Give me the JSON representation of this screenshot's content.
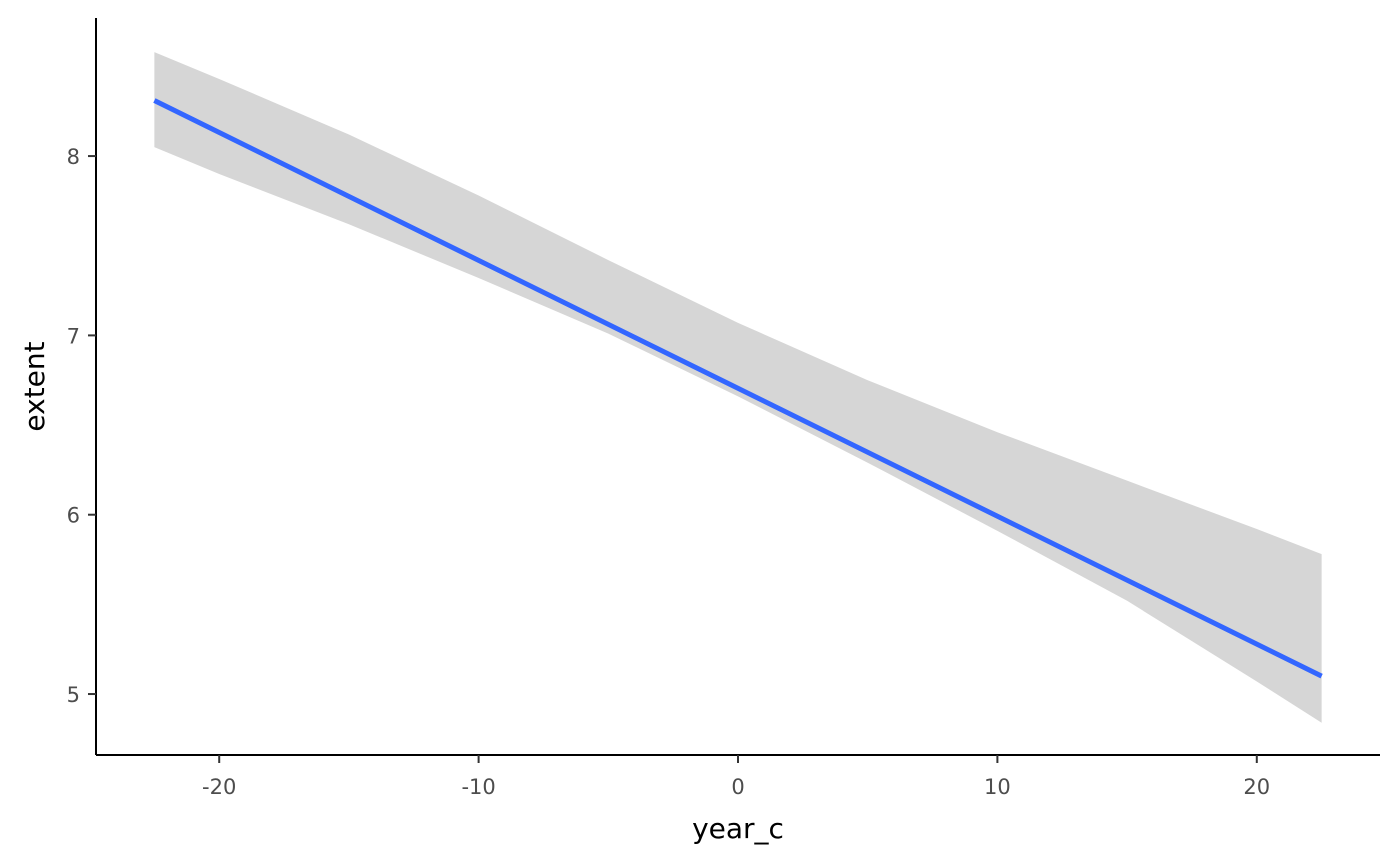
{
  "chart_data": {
    "type": "line",
    "title": "",
    "xlabel": "year_c",
    "ylabel": "extent",
    "xlim": [
      -24.75,
      24.75
    ],
    "ylim": [
      4.66,
      8.77
    ],
    "x_ticks": [
      -20,
      -10,
      0,
      10,
      20
    ],
    "x_tick_labels": [
      "-20",
      "-10",
      "0",
      "10",
      "20"
    ],
    "y_ticks": [
      5,
      6,
      7,
      8
    ],
    "y_tick_labels": [
      "5",
      "6",
      "7",
      "8"
    ],
    "grid": false,
    "legend": "none",
    "series": [
      {
        "kind": "fit-line",
        "color": "#3366ff",
        "x": [
          -22.5,
          22.5
        ],
        "y": [
          8.31,
          5.1
        ]
      },
      {
        "kind": "confidence-band",
        "color": "#d6d6d6",
        "x": [
          -22.5,
          -20,
          -15,
          -10,
          -5,
          0,
          5,
          10,
          15,
          20,
          22.5
        ],
        "lower": [
          8.05,
          7.9,
          7.62,
          7.32,
          7.01,
          6.66,
          6.29,
          5.91,
          5.52,
          5.07,
          4.84
        ],
        "upper": [
          8.58,
          8.43,
          8.12,
          7.78,
          7.42,
          7.07,
          6.75,
          6.46,
          6.19,
          5.92,
          5.78
        ]
      }
    ]
  }
}
